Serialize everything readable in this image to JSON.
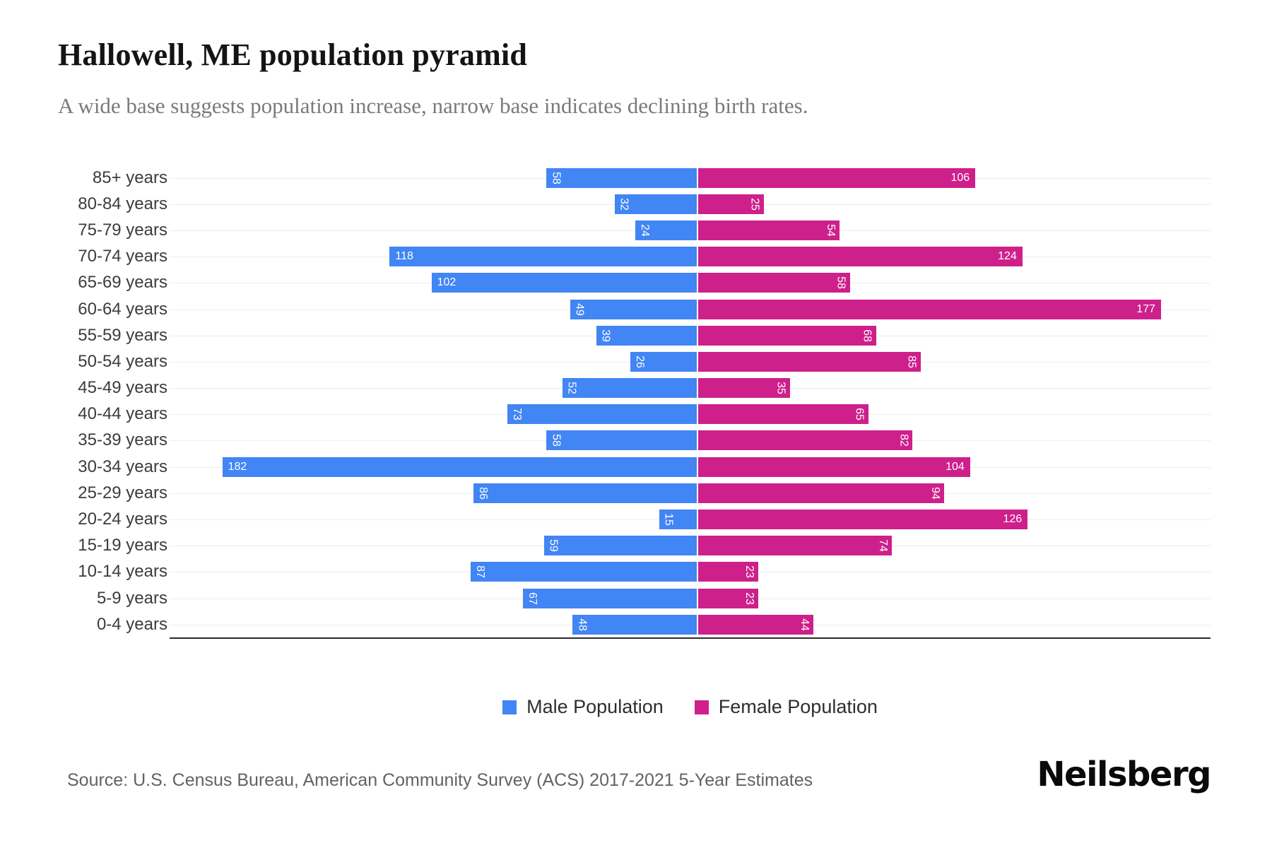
{
  "header": {
    "title": "Hallowell, ME population pyramid",
    "subtitle": "A wide base suggests population increase, narrow base indicates declining birth rates."
  },
  "chart_data": {
    "type": "bar",
    "variant": "population-pyramid",
    "orientation": "horizontal",
    "categories": [
      "85+ years",
      "80-84 years",
      "75-79 years",
      "70-74 years",
      "65-69 years",
      "60-64 years",
      "55-59 years",
      "50-54 years",
      "45-49 years",
      "40-44 years",
      "35-39 years",
      "30-34 years",
      "25-29 years",
      "20-24 years",
      "15-19 years",
      "10-14 years",
      "5-9 years",
      "0-4 years"
    ],
    "series": [
      {
        "name": "Male Population",
        "color": "#4285f4",
        "side": "left",
        "values": [
          58,
          32,
          24,
          118,
          102,
          49,
          39,
          26,
          52,
          73,
          58,
          182,
          86,
          15,
          59,
          87,
          67,
          48
        ]
      },
      {
        "name": "Female Population",
        "color": "#ce208b",
        "side": "right",
        "values": [
          106,
          25,
          54,
          124,
          58,
          177,
          68,
          85,
          35,
          65,
          82,
          104,
          94,
          126,
          74,
          23,
          23,
          44
        ]
      }
    ],
    "value_labels": "inside-bar-white",
    "grid": true,
    "legend_position": "bottom",
    "xlim_left": [
      182,
      0
    ],
    "xlim_right": [
      0,
      177
    ]
  },
  "footer": {
    "source": "Source: U.S. Census Bureau, American Community Survey (ACS) 2017-2021 5-Year Estimates",
    "logo": "Neilsberg"
  }
}
